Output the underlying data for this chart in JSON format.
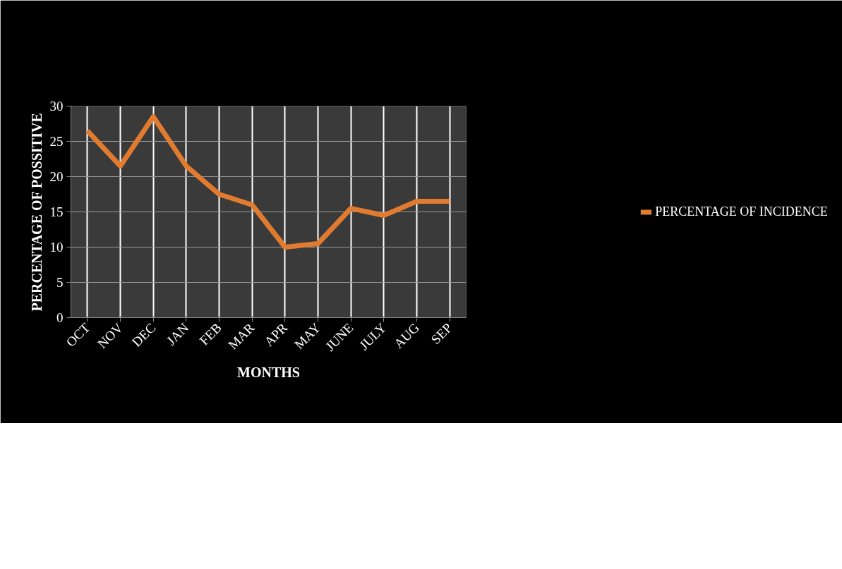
{
  "chart_data": {
    "type": "line",
    "xlabel": "MONTHS",
    "ylabel": "PERCENTAGE OF POSSITIVE",
    "categories": [
      "OCT",
      "NOV",
      "DEC",
      "JAN",
      "FEB",
      "MAR",
      "APR",
      "MAY",
      "JUNE",
      "JULY",
      "AUG",
      "SEP"
    ],
    "series": [
      {
        "name": "PERCENTAGE OF INCIDENCE",
        "color": "#e07b30",
        "values": [
          26.5,
          21.5,
          28.5,
          21.5,
          17.5,
          16,
          10,
          10.5,
          15.5,
          14.5,
          16.5,
          16.5
        ]
      }
    ],
    "ylim": [
      0,
      30
    ],
    "yticks": [
      0,
      5,
      10,
      15,
      20,
      25,
      30
    ],
    "grid": true,
    "legend": "right",
    "marker": "none",
    "line_style": "solid"
  }
}
